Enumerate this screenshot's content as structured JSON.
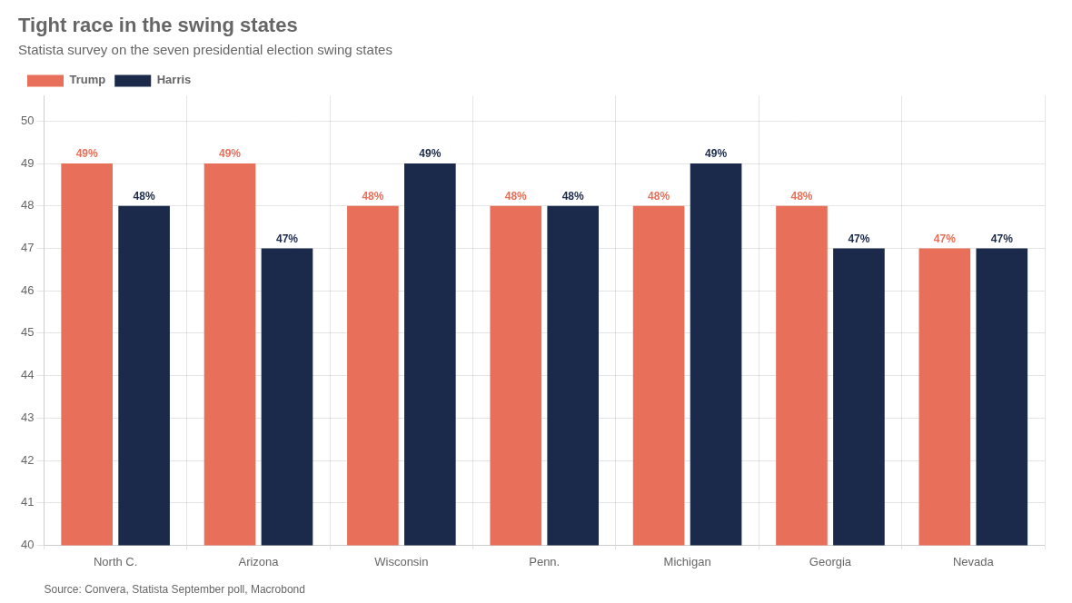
{
  "chart_data": {
    "type": "bar",
    "title": "Tight race in the swing states",
    "subtitle": "Statista survey on the seven presidential election swing states",
    "annotations": [
      "Source: Convera, Statista September poll, Macrobond"
    ],
    "categories": [
      "North C.",
      "Arizona",
      "Wisconsin",
      "Penn.",
      "Michigan",
      "Georgia",
      "Nevada"
    ],
    "series": [
      {
        "name": "Trump",
        "color": "#E8705A",
        "values": [
          49,
          49,
          48,
          48,
          48,
          48,
          47
        ],
        "value_labels": [
          "49%",
          "49%",
          "48%",
          "48%",
          "48%",
          "48%",
          "47%"
        ]
      },
      {
        "name": "Harris",
        "color": "#1B2A4A",
        "values": [
          48,
          47,
          49,
          48,
          49,
          47,
          47
        ],
        "value_labels": [
          "48%",
          "47%",
          "49%",
          "48%",
          "49%",
          "47%",
          "47%"
        ]
      }
    ],
    "ylim": [
      40,
      50.6
    ],
    "yticks": [
      40,
      41,
      42,
      43,
      44,
      45,
      46,
      47,
      48,
      49,
      50
    ],
    "grid": true,
    "legend": "upper left",
    "data_labels": true
  }
}
